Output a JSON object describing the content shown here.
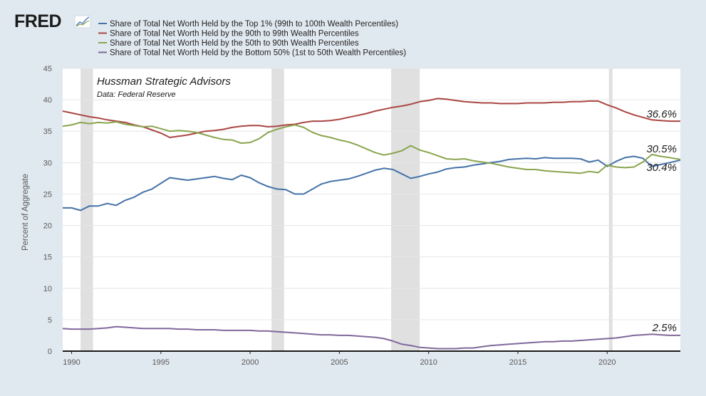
{
  "header": {
    "logo_text": "FRED",
    "logo_icon": "line-chart-icon"
  },
  "chart_data": {
    "type": "line",
    "ylabel": "Percent of Aggregate",
    "xlabel": "",
    "ylim": [
      0,
      45
    ],
    "xlim": [
      1989.5,
      2024.1
    ],
    "yticks": [
      0,
      5,
      10,
      15,
      20,
      25,
      30,
      35,
      40,
      45
    ],
    "xticks": [
      1990,
      1995,
      2000,
      2005,
      2010,
      2015,
      2020
    ],
    "grid": true,
    "legend_position": "top-left",
    "recessions": [
      [
        1990.5,
        1991.2
      ],
      [
        2001.2,
        2001.9
      ],
      [
        2007.9,
        2009.5
      ],
      [
        2020.1,
        2020.3
      ]
    ],
    "annotation": {
      "title": "Hussman Strategic Advisors",
      "subtitle": "Data: Federal Reserve"
    },
    "end_labels": [
      {
        "text": "36.6%",
        "series": 1
      },
      {
        "text": "30.5%",
        "series": 2
      },
      {
        "text": "30.4%",
        "series": 0
      },
      {
        "text": "2.5%",
        "series": 3
      }
    ],
    "series": [
      {
        "name": "Share of Total Net Worth Held by the Top 1% (99th to 100th Wealth Percentiles)",
        "color": "#4572a7",
        "points": [
          [
            1989.5,
            22.8
          ],
          [
            1990,
            22.8
          ],
          [
            1990.5,
            22.4
          ],
          [
            1991,
            23.1
          ],
          [
            1991.5,
            23.1
          ],
          [
            1992,
            23.5
          ],
          [
            1992.5,
            23.2
          ],
          [
            1993,
            24.0
          ],
          [
            1993.5,
            24.5
          ],
          [
            1994,
            25.3
          ],
          [
            1994.5,
            25.8
          ],
          [
            1995,
            26.7
          ],
          [
            1995.5,
            27.6
          ],
          [
            1996,
            27.4
          ],
          [
            1996.5,
            27.2
          ],
          [
            1997,
            27.4
          ],
          [
            1997.5,
            27.6
          ],
          [
            1998,
            27.8
          ],
          [
            1998.5,
            27.5
          ],
          [
            1999,
            27.3
          ],
          [
            1999.5,
            28.0
          ],
          [
            2000,
            27.6
          ],
          [
            2000.5,
            26.8
          ],
          [
            2001,
            26.2
          ],
          [
            2001.5,
            25.8
          ],
          [
            2002,
            25.7
          ],
          [
            2002.5,
            25.0
          ],
          [
            2003,
            25.0
          ],
          [
            2003.5,
            25.8
          ],
          [
            2004,
            26.6
          ],
          [
            2004.5,
            27.0
          ],
          [
            2005,
            27.2
          ],
          [
            2005.5,
            27.4
          ],
          [
            2006,
            27.8
          ],
          [
            2006.5,
            28.3
          ],
          [
            2007,
            28.8
          ],
          [
            2007.5,
            29.1
          ],
          [
            2008,
            28.9
          ],
          [
            2008.5,
            28.2
          ],
          [
            2009,
            27.5
          ],
          [
            2009.5,
            27.8
          ],
          [
            2010,
            28.2
          ],
          [
            2010.5,
            28.5
          ],
          [
            2011,
            29.0
          ],
          [
            2011.5,
            29.2
          ],
          [
            2012,
            29.3
          ],
          [
            2012.5,
            29.6
          ],
          [
            2013,
            29.8
          ],
          [
            2013.5,
            30.0
          ],
          [
            2014,
            30.2
          ],
          [
            2014.5,
            30.5
          ],
          [
            2015,
            30.6
          ],
          [
            2015.5,
            30.7
          ],
          [
            2016,
            30.6
          ],
          [
            2016.5,
            30.8
          ],
          [
            2017,
            30.7
          ],
          [
            2017.5,
            30.7
          ],
          [
            2018,
            30.7
          ],
          [
            2018.5,
            30.6
          ],
          [
            2019,
            30.1
          ],
          [
            2019.5,
            30.4
          ],
          [
            2020,
            29.4
          ],
          [
            2020.5,
            30.2
          ],
          [
            2021,
            30.8
          ],
          [
            2021.5,
            31.0
          ],
          [
            2022,
            30.7
          ],
          [
            2022.5,
            29.4
          ],
          [
            2023,
            29.7
          ],
          [
            2023.5,
            30.0
          ],
          [
            2024.1,
            30.4
          ]
        ]
      },
      {
        "name": "Share of Total Net Worth Held by the 90th to 99th Wealth Percentiles",
        "color": "#aa4643",
        "points": [
          [
            1989.5,
            38.2
          ],
          [
            1990,
            37.9
          ],
          [
            1990.5,
            37.6
          ],
          [
            1991,
            37.3
          ],
          [
            1991.5,
            37.1
          ],
          [
            1992,
            36.8
          ],
          [
            1992.5,
            36.6
          ],
          [
            1993,
            36.4
          ],
          [
            1993.5,
            36.0
          ],
          [
            1994,
            35.7
          ],
          [
            1994.5,
            35.2
          ],
          [
            1995,
            34.7
          ],
          [
            1995.5,
            34.0
          ],
          [
            1996,
            34.2
          ],
          [
            1996.5,
            34.4
          ],
          [
            1997,
            34.7
          ],
          [
            1997.5,
            35.0
          ],
          [
            1998,
            35.1
          ],
          [
            1998.5,
            35.3
          ],
          [
            1999,
            35.6
          ],
          [
            1999.5,
            35.8
          ],
          [
            2000,
            35.9
          ],
          [
            2000.5,
            35.9
          ],
          [
            2001,
            35.7
          ],
          [
            2001.5,
            35.8
          ],
          [
            2002,
            36.0
          ],
          [
            2002.5,
            36.1
          ],
          [
            2003,
            36.4
          ],
          [
            2003.5,
            36.6
          ],
          [
            2004,
            36.6
          ],
          [
            2004.5,
            36.7
          ],
          [
            2005,
            36.9
          ],
          [
            2005.5,
            37.2
          ],
          [
            2006,
            37.5
          ],
          [
            2006.5,
            37.8
          ],
          [
            2007,
            38.2
          ],
          [
            2007.5,
            38.5
          ],
          [
            2008,
            38.8
          ],
          [
            2008.5,
            39.0
          ],
          [
            2009,
            39.3
          ],
          [
            2009.5,
            39.7
          ],
          [
            2010,
            39.9
          ],
          [
            2010.5,
            40.2
          ],
          [
            2011,
            40.1
          ],
          [
            2011.5,
            39.9
          ],
          [
            2012,
            39.7
          ],
          [
            2012.5,
            39.6
          ],
          [
            2013,
            39.5
          ],
          [
            2013.5,
            39.5
          ],
          [
            2014,
            39.4
          ],
          [
            2014.5,
            39.4
          ],
          [
            2015,
            39.4
          ],
          [
            2015.5,
            39.5
          ],
          [
            2016,
            39.5
          ],
          [
            2016.5,
            39.5
          ],
          [
            2017,
            39.6
          ],
          [
            2017.5,
            39.6
          ],
          [
            2018,
            39.7
          ],
          [
            2018.5,
            39.7
          ],
          [
            2019,
            39.8
          ],
          [
            2019.5,
            39.8
          ],
          [
            2020,
            39.2
          ],
          [
            2020.5,
            38.7
          ],
          [
            2021,
            38.1
          ],
          [
            2021.5,
            37.6
          ],
          [
            2022,
            37.2
          ],
          [
            2022.5,
            36.8
          ],
          [
            2023,
            36.7
          ],
          [
            2023.5,
            36.6
          ],
          [
            2024.1,
            36.6
          ]
        ]
      },
      {
        "name": "Share of Total Net Worth Held by the 50th to 90th Wealth Percentiles",
        "color": "#89a54e",
        "points": [
          [
            1989.5,
            35.8
          ],
          [
            1990,
            36.0
          ],
          [
            1990.5,
            36.4
          ],
          [
            1991,
            36.2
          ],
          [
            1991.5,
            36.4
          ],
          [
            1992,
            36.3
          ],
          [
            1992.5,
            36.5
          ],
          [
            1993,
            36.1
          ],
          [
            1993.5,
            35.9
          ],
          [
            1994,
            35.7
          ],
          [
            1994.5,
            35.8
          ],
          [
            1995,
            35.4
          ],
          [
            1995.5,
            35.0
          ],
          [
            1996,
            35.1
          ],
          [
            1996.5,
            35.0
          ],
          [
            1997,
            34.8
          ],
          [
            1997.5,
            34.4
          ],
          [
            1998,
            34.0
          ],
          [
            1998.5,
            33.7
          ],
          [
            1999,
            33.6
          ],
          [
            1999.5,
            33.1
          ],
          [
            2000,
            33.2
          ],
          [
            2000.5,
            33.8
          ],
          [
            2001,
            34.8
          ],
          [
            2001.5,
            35.3
          ],
          [
            2002,
            35.7
          ],
          [
            2002.5,
            36.0
          ],
          [
            2003,
            35.6
          ],
          [
            2003.5,
            34.8
          ],
          [
            2004,
            34.3
          ],
          [
            2004.5,
            34.0
          ],
          [
            2005,
            33.6
          ],
          [
            2005.5,
            33.3
          ],
          [
            2006,
            32.8
          ],
          [
            2006.5,
            32.2
          ],
          [
            2007,
            31.6
          ],
          [
            2007.5,
            31.2
          ],
          [
            2008,
            31.5
          ],
          [
            2008.5,
            31.9
          ],
          [
            2009,
            32.7
          ],
          [
            2009.5,
            32.0
          ],
          [
            2010,
            31.6
          ],
          [
            2010.5,
            31.1
          ],
          [
            2011,
            30.6
          ],
          [
            2011.5,
            30.5
          ],
          [
            2012,
            30.6
          ],
          [
            2012.5,
            30.3
          ],
          [
            2013,
            30.1
          ],
          [
            2013.5,
            29.9
          ],
          [
            2014,
            29.6
          ],
          [
            2014.5,
            29.3
          ],
          [
            2015,
            29.1
          ],
          [
            2015.5,
            28.9
          ],
          [
            2016,
            28.9
          ],
          [
            2016.5,
            28.7
          ],
          [
            2017,
            28.6
          ],
          [
            2017.5,
            28.5
          ],
          [
            2018,
            28.4
          ],
          [
            2018.5,
            28.3
          ],
          [
            2019,
            28.6
          ],
          [
            2019.5,
            28.4
          ],
          [
            2020,
            29.6
          ],
          [
            2020.5,
            29.3
          ],
          [
            2021,
            29.2
          ],
          [
            2021.5,
            29.3
          ],
          [
            2022,
            30.1
          ],
          [
            2022.5,
            31.3
          ],
          [
            2023,
            31.0
          ],
          [
            2023.5,
            30.8
          ],
          [
            2024.1,
            30.5
          ]
        ]
      },
      {
        "name": "Share of Total Net Worth Held by the Bottom 50% (1st to 50th Wealth Percentiles)",
        "color": "#80699b",
        "points": [
          [
            1989.5,
            3.6
          ],
          [
            1990,
            3.5
          ],
          [
            1990.5,
            3.5
          ],
          [
            1991,
            3.5
          ],
          [
            1991.5,
            3.6
          ],
          [
            1992,
            3.7
          ],
          [
            1992.5,
            3.9
          ],
          [
            1993,
            3.8
          ],
          [
            1993.5,
            3.7
          ],
          [
            1994,
            3.6
          ],
          [
            1994.5,
            3.6
          ],
          [
            1995,
            3.6
          ],
          [
            1995.5,
            3.6
          ],
          [
            1996,
            3.5
          ],
          [
            1996.5,
            3.5
          ],
          [
            1997,
            3.4
          ],
          [
            1997.5,
            3.4
          ],
          [
            1998,
            3.4
          ],
          [
            1998.5,
            3.3
          ],
          [
            1999,
            3.3
          ],
          [
            1999.5,
            3.3
          ],
          [
            2000,
            3.3
          ],
          [
            2000.5,
            3.2
          ],
          [
            2001,
            3.2
          ],
          [
            2001.5,
            3.1
          ],
          [
            2002,
            3.0
          ],
          [
            2002.5,
            2.9
          ],
          [
            2003,
            2.8
          ],
          [
            2003.5,
            2.7
          ],
          [
            2004,
            2.6
          ],
          [
            2004.5,
            2.6
          ],
          [
            2005,
            2.5
          ],
          [
            2005.5,
            2.5
          ],
          [
            2006,
            2.4
          ],
          [
            2006.5,
            2.3
          ],
          [
            2007,
            2.2
          ],
          [
            2007.5,
            2.0
          ],
          [
            2008,
            1.6
          ],
          [
            2008.5,
            1.1
          ],
          [
            2009,
            0.9
          ],
          [
            2009.5,
            0.6
          ],
          [
            2010,
            0.5
          ],
          [
            2010.5,
            0.4
          ],
          [
            2011,
            0.4
          ],
          [
            2011.5,
            0.4
          ],
          [
            2012,
            0.5
          ],
          [
            2012.5,
            0.5
          ],
          [
            2013,
            0.7
          ],
          [
            2013.5,
            0.9
          ],
          [
            2014,
            1.0
          ],
          [
            2014.5,
            1.1
          ],
          [
            2015,
            1.2
          ],
          [
            2015.5,
            1.3
          ],
          [
            2016,
            1.4
          ],
          [
            2016.5,
            1.5
          ],
          [
            2017,
            1.5
          ],
          [
            2017.5,
            1.6
          ],
          [
            2018,
            1.6
          ],
          [
            2018.5,
            1.7
          ],
          [
            2019,
            1.8
          ],
          [
            2019.5,
            1.9
          ],
          [
            2020,
            2.0
          ],
          [
            2020.5,
            2.1
          ],
          [
            2021,
            2.3
          ],
          [
            2021.5,
            2.5
          ],
          [
            2022,
            2.6
          ],
          [
            2022.5,
            2.7
          ],
          [
            2023,
            2.6
          ],
          [
            2023.5,
            2.5
          ],
          [
            2024.1,
            2.5
          ]
        ]
      }
    ]
  }
}
